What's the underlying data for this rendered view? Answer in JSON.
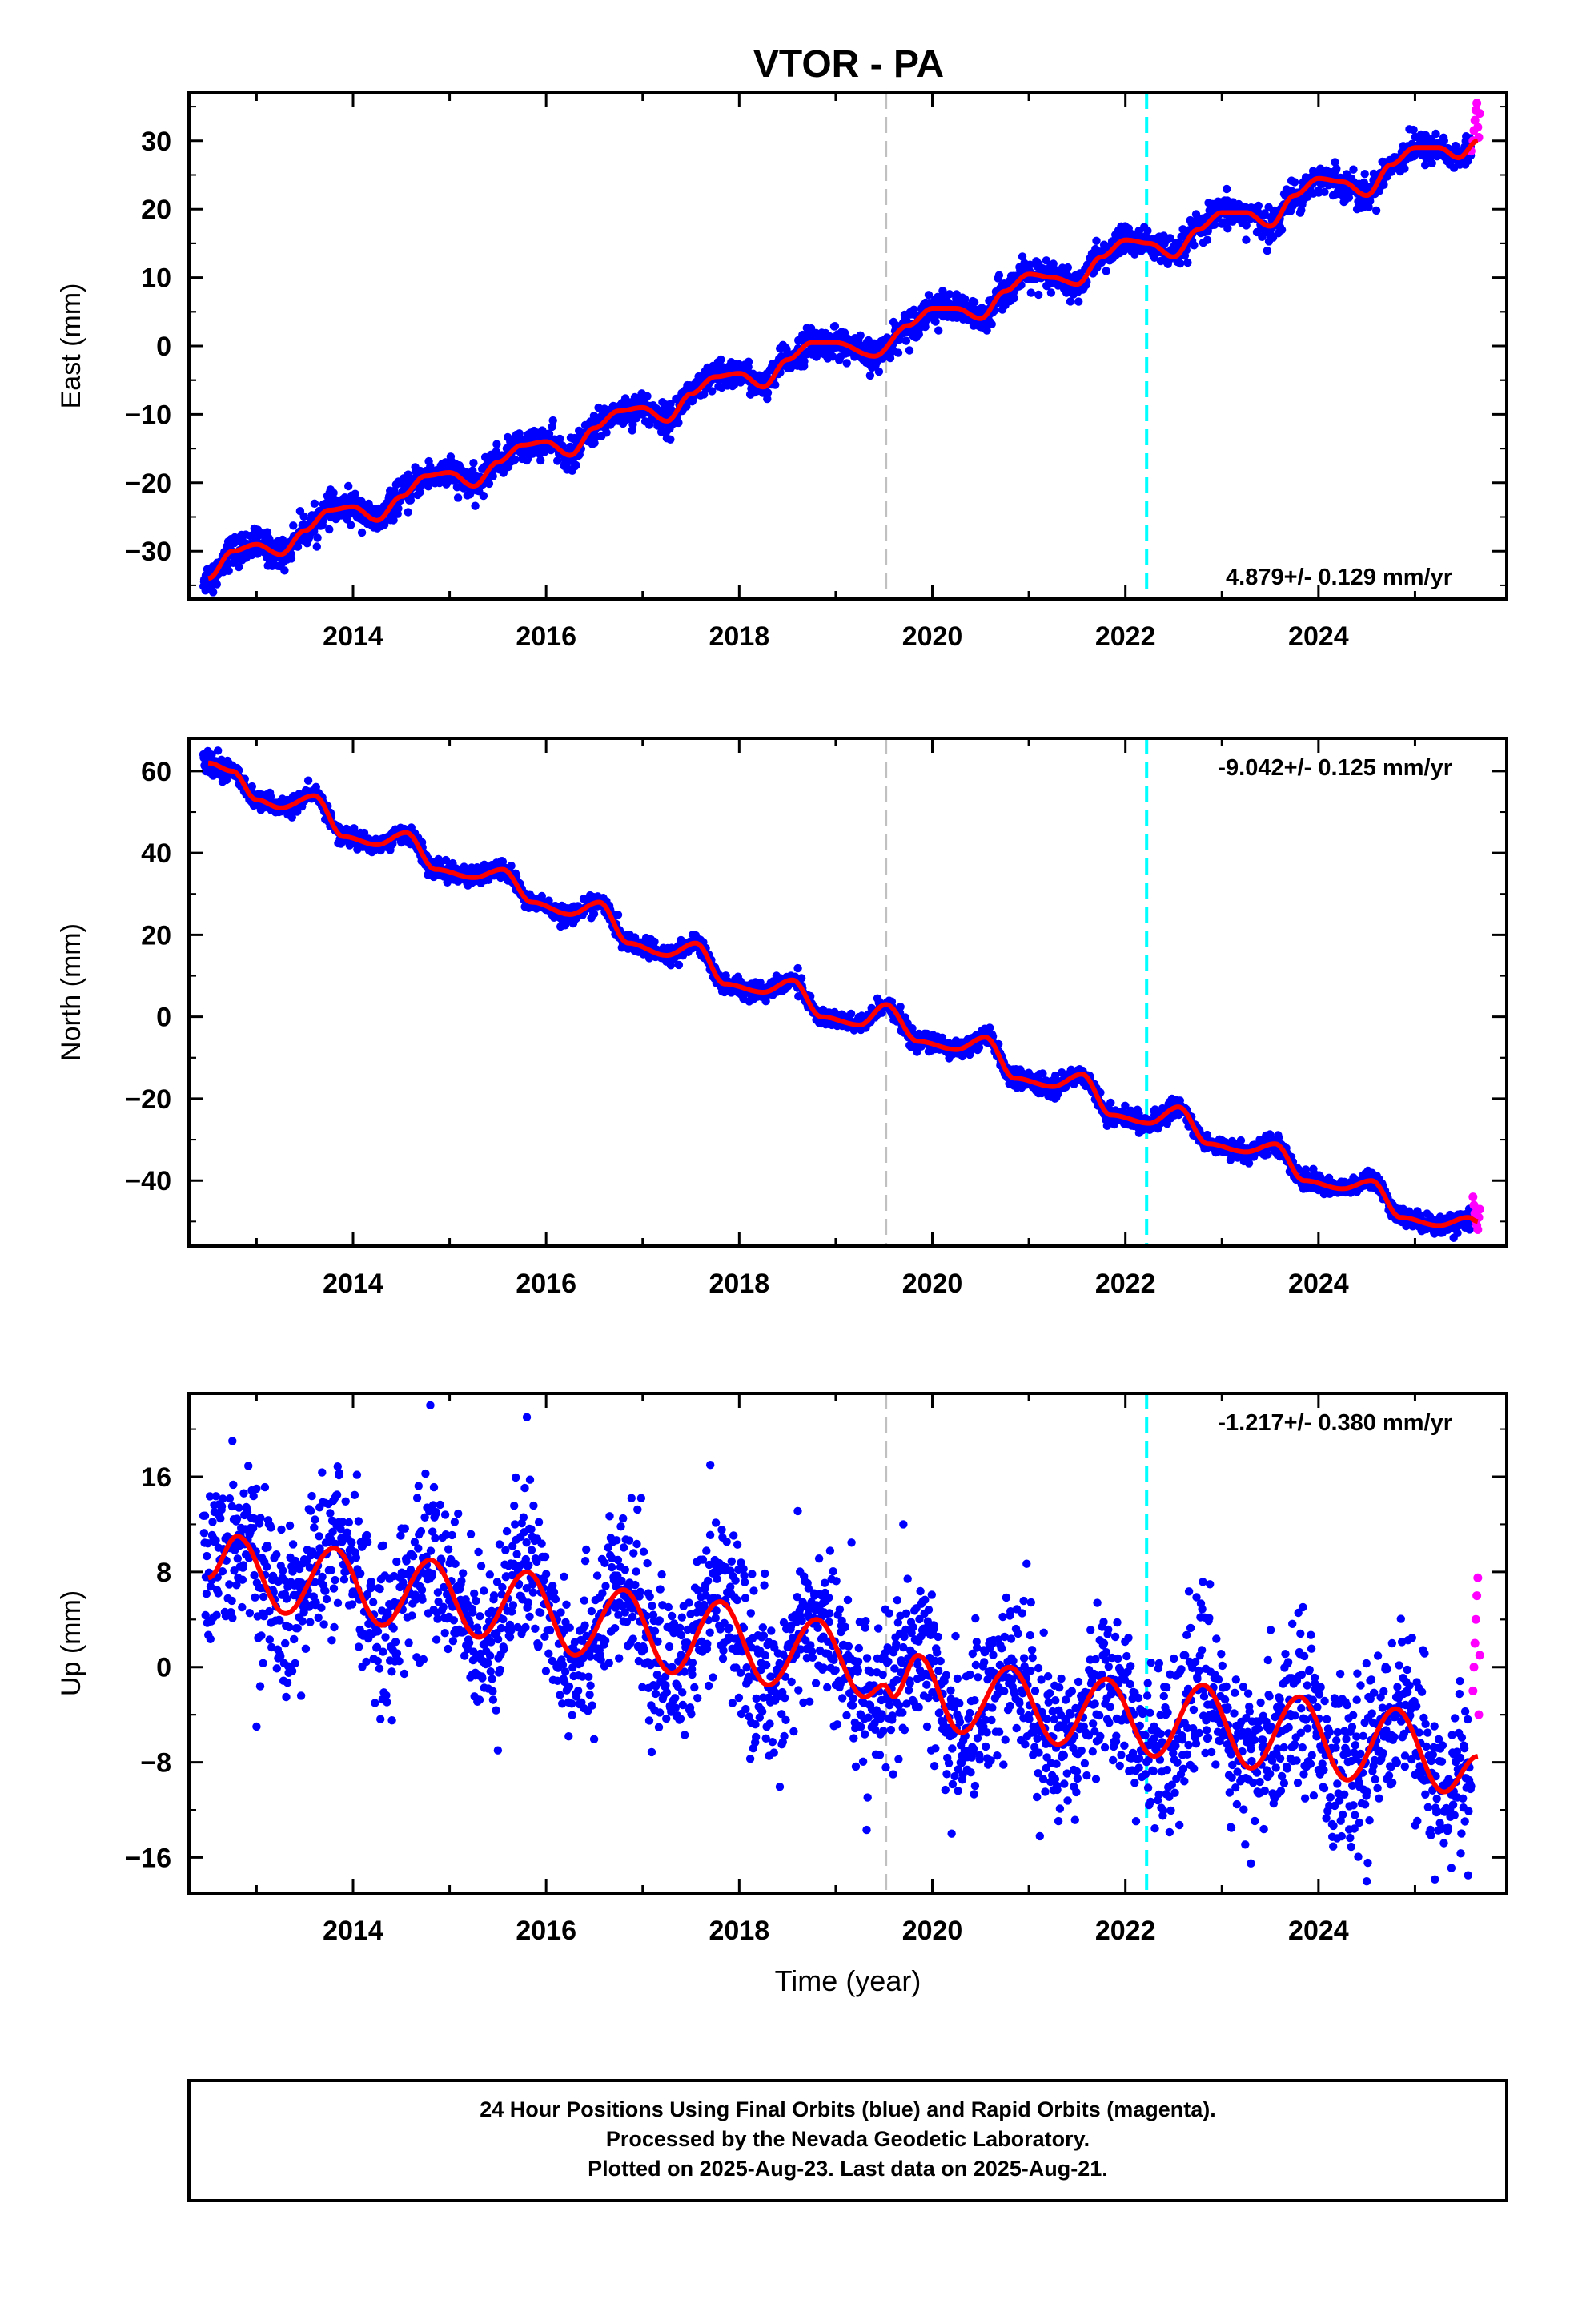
{
  "chart_data": {
    "title": "VTOR - PA",
    "type": "scatter",
    "xlabel": "Time (year)",
    "xlim": [
      2012.3,
      2025.95
    ],
    "x_ticks": [
      2014,
      2016,
      2018,
      2020,
      2022,
      2024
    ],
    "vertical_lines": [
      {
        "x": 2019.52,
        "color": "#c0c0c0",
        "style": "dashed"
      },
      {
        "x": 2022.22,
        "color": "#00ffff",
        "style": "dashed"
      }
    ],
    "colors": {
      "final": "#0000ff",
      "rapid": "#ff00ff",
      "model": "#ff0000"
    },
    "panels": [
      {
        "name": "east",
        "ylabel": "East (mm)",
        "ylim": [
          -37,
          37
        ],
        "y_ticks": [
          -30,
          -20,
          -10,
          0,
          10,
          20,
          30
        ],
        "y_tick_labels": [
          "−30",
          "−20",
          "−10",
          "0",
          "10",
          "20",
          "30"
        ],
        "rate": "4.879+/- 0.129 mm/yr",
        "rate_position": "bottom-right",
        "model": [
          [
            2012.5,
            -34
          ],
          [
            2012.75,
            -30
          ],
          [
            2013.0,
            -29
          ],
          [
            2013.25,
            -30.5
          ],
          [
            2013.5,
            -27
          ],
          [
            2013.75,
            -24
          ],
          [
            2014.0,
            -23.5
          ],
          [
            2014.25,
            -25.5
          ],
          [
            2014.5,
            -22
          ],
          [
            2014.75,
            -19
          ],
          [
            2015.0,
            -18.5
          ],
          [
            2015.25,
            -20.5
          ],
          [
            2015.5,
            -17
          ],
          [
            2015.75,
            -14.5
          ],
          [
            2016.0,
            -14
          ],
          [
            2016.25,
            -16
          ],
          [
            2016.5,
            -12
          ],
          [
            2016.75,
            -9.5
          ],
          [
            2017.0,
            -9
          ],
          [
            2017.25,
            -11
          ],
          [
            2017.5,
            -7
          ],
          [
            2017.75,
            -4.5
          ],
          [
            2018.0,
            -4
          ],
          [
            2018.25,
            -6
          ],
          [
            2018.5,
            -2
          ],
          [
            2018.75,
            0.5
          ],
          [
            2019.0,
            0.5
          ],
          [
            2019.4,
            -1.5
          ],
          [
            2019.75,
            3
          ],
          [
            2020.0,
            5.5
          ],
          [
            2020.25,
            5.5
          ],
          [
            2020.5,
            4
          ],
          [
            2020.75,
            8
          ],
          [
            2021.0,
            10.5
          ],
          [
            2021.25,
            10
          ],
          [
            2021.5,
            9
          ],
          [
            2021.75,
            13
          ],
          [
            2022.0,
            15.5
          ],
          [
            2022.25,
            15
          ],
          [
            2022.5,
            13
          ],
          [
            2022.75,
            17
          ],
          [
            2023.0,
            19.5
          ],
          [
            2023.25,
            19.5
          ],
          [
            2023.5,
            17.5
          ],
          [
            2023.75,
            22
          ],
          [
            2024.0,
            24.5
          ],
          [
            2024.25,
            24
          ],
          [
            2024.5,
            22
          ],
          [
            2024.75,
            26.5
          ],
          [
            2025.0,
            29
          ],
          [
            2025.25,
            29
          ],
          [
            2025.45,
            27.5
          ],
          [
            2025.65,
            30
          ]
        ],
        "rapid": [
          [
            2025.58,
            28.5
          ],
          [
            2025.6,
            30
          ],
          [
            2025.61,
            31.5
          ],
          [
            2025.62,
            33
          ],
          [
            2025.63,
            34.5
          ],
          [
            2025.64,
            35.5
          ],
          [
            2025.65,
            32
          ],
          [
            2025.66,
            30.5
          ],
          [
            2025.67,
            34
          ]
        ],
        "scatter": 1.1,
        "outliers": [
          [
            2012.55,
            -36
          ],
          [
            2019.8,
            1.5
          ],
          [
            2021.1,
            7.5
          ],
          [
            2023.25,
            15.5
          ],
          [
            2024.4,
            20
          ]
        ]
      },
      {
        "name": "north",
        "ylabel": "North (mm)",
        "ylim": [
          -56,
          68
        ],
        "y_ticks": [
          -40,
          -20,
          0,
          20,
          40,
          60
        ],
        "y_tick_labels": [
          "−40",
          "−20",
          "0",
          "20",
          "40",
          "60"
        ],
        "rate": "-9.042+/- 0.125 mm/yr",
        "rate_position": "top-right",
        "model": [
          [
            2012.5,
            62
          ],
          [
            2012.75,
            60
          ],
          [
            2013.0,
            53
          ],
          [
            2013.25,
            51
          ],
          [
            2013.6,
            54
          ],
          [
            2013.9,
            44
          ],
          [
            2014.25,
            42
          ],
          [
            2014.55,
            45
          ],
          [
            2014.85,
            36
          ],
          [
            2015.25,
            34
          ],
          [
            2015.55,
            36
          ],
          [
            2015.85,
            28
          ],
          [
            2016.25,
            25
          ],
          [
            2016.55,
            28
          ],
          [
            2016.85,
            18
          ],
          [
            2017.25,
            15
          ],
          [
            2017.55,
            18
          ],
          [
            2017.85,
            8
          ],
          [
            2018.25,
            6
          ],
          [
            2018.55,
            9
          ],
          [
            2018.85,
            0
          ],
          [
            2019.25,
            -2
          ],
          [
            2019.52,
            3
          ],
          [
            2019.85,
            -6
          ],
          [
            2020.25,
            -8
          ],
          [
            2020.55,
            -5
          ],
          [
            2020.85,
            -15
          ],
          [
            2021.25,
            -17
          ],
          [
            2021.55,
            -14
          ],
          [
            2021.85,
            -24
          ],
          [
            2022.25,
            -26
          ],
          [
            2022.55,
            -22
          ],
          [
            2022.85,
            -31
          ],
          [
            2023.25,
            -33
          ],
          [
            2023.55,
            -31
          ],
          [
            2023.85,
            -40
          ],
          [
            2024.25,
            -42
          ],
          [
            2024.55,
            -40
          ],
          [
            2024.85,
            -49
          ],
          [
            2025.25,
            -51
          ],
          [
            2025.55,
            -49
          ],
          [
            2025.65,
            -50
          ]
        ],
        "rapid": [
          [
            2025.6,
            -44
          ],
          [
            2025.61,
            -46
          ],
          [
            2025.62,
            -48
          ],
          [
            2025.63,
            -50
          ],
          [
            2025.64,
            -51
          ],
          [
            2025.65,
            -52
          ],
          [
            2025.66,
            -49
          ],
          [
            2025.67,
            -47
          ]
        ],
        "scatter": 1.1,
        "outliers": [
          [
            2025.4,
            -54
          ],
          [
            2012.6,
            65
          ]
        ]
      },
      {
        "name": "up",
        "ylabel": "Up (mm)",
        "ylim": [
          -19,
          23
        ],
        "y_ticks": [
          -16,
          -8,
          0,
          8,
          16
        ],
        "y_tick_labels": [
          "−16",
          "−8",
          "0",
          "8",
          "16"
        ],
        "rate": "-1.217+/- 0.380 mm/yr",
        "rate_position": "top-right",
        "model": [
          [
            2012.5,
            7.5
          ],
          [
            2012.8,
            11
          ],
          [
            2013.3,
            4.5
          ],
          [
            2013.8,
            10
          ],
          [
            2014.3,
            3.5
          ],
          [
            2014.8,
            9
          ],
          [
            2015.3,
            2.5
          ],
          [
            2015.8,
            8
          ],
          [
            2016.3,
            1
          ],
          [
            2016.8,
            6.5
          ],
          [
            2017.3,
            -0.5
          ],
          [
            2017.8,
            5.5
          ],
          [
            2018.3,
            -1.5
          ],
          [
            2018.8,
            4
          ],
          [
            2019.3,
            -2.5
          ],
          [
            2019.5,
            -1.5
          ],
          [
            2019.6,
            -2.5
          ],
          [
            2019.85,
            1
          ],
          [
            2020.3,
            -5.5
          ],
          [
            2020.8,
            0
          ],
          [
            2021.3,
            -6.5
          ],
          [
            2021.8,
            -1
          ],
          [
            2022.3,
            -7.5
          ],
          [
            2022.8,
            -1.5
          ],
          [
            2023.3,
            -8.5
          ],
          [
            2023.8,
            -2.5
          ],
          [
            2024.3,
            -9.5
          ],
          [
            2024.8,
            -3.5
          ],
          [
            2025.3,
            -10.5
          ],
          [
            2025.65,
            -7.5
          ]
        ],
        "rapid": [
          [
            2025.6,
            -2
          ],
          [
            2025.61,
            0
          ],
          [
            2025.62,
            2
          ],
          [
            2025.63,
            4
          ],
          [
            2025.64,
            6
          ],
          [
            2025.65,
            7.5
          ],
          [
            2025.66,
            -4
          ],
          [
            2025.67,
            1
          ]
        ],
        "scatter": 3.3,
        "outliers": [
          [
            2012.75,
            19
          ],
          [
            2014.8,
            22
          ],
          [
            2015.8,
            21
          ],
          [
            2017.7,
            17
          ],
          [
            2015.5,
            -7
          ],
          [
            2013.0,
            -5
          ],
          [
            2019.7,
            12
          ],
          [
            2023.3,
            -16.5
          ],
          [
            2024.5,
            -18
          ],
          [
            2025.55,
            -17.5
          ],
          [
            2020.2,
            -14
          ]
        ]
      }
    ],
    "footer": {
      "lines": [
        "24 Hour Positions Using Final Orbits (blue) and Rapid Orbits (magenta).",
        "Processed by the Nevada Geodetic Laboratory.",
        "Plotted on 2025-Aug-23. Last data on 2025-Aug-21."
      ]
    }
  }
}
